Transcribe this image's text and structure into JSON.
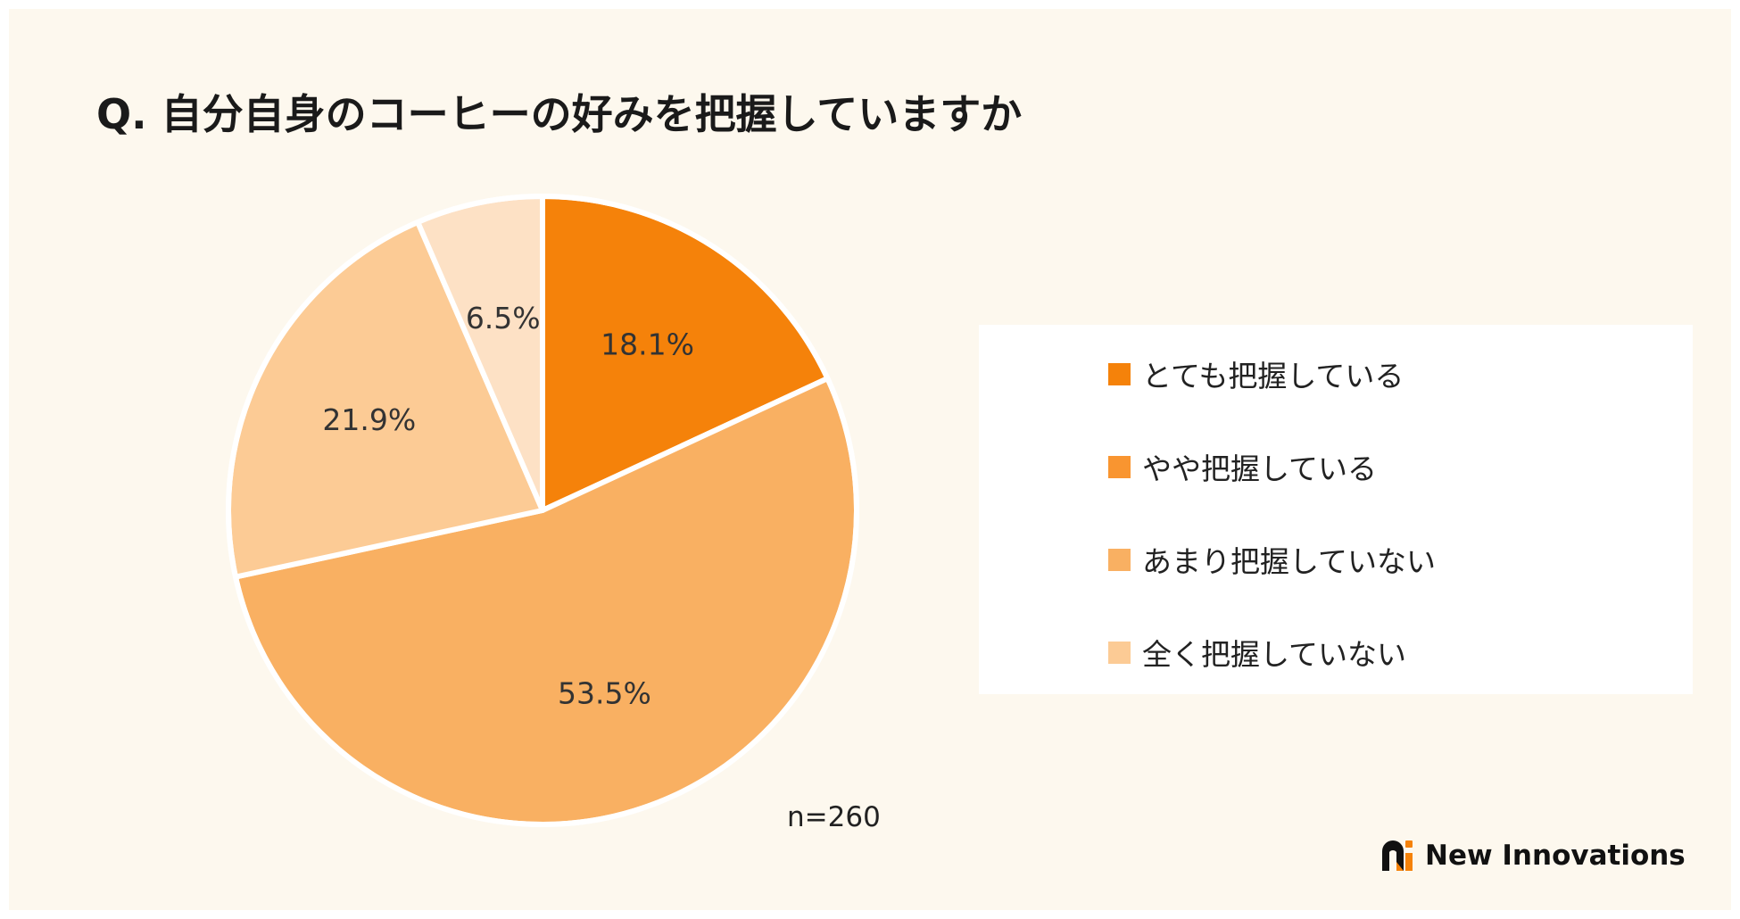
{
  "title": "Q. 自分自身のコーヒーの好みを把握していますか",
  "chart_data": {
    "type": "pie",
    "title": "Q. 自分自身のコーヒーの好みを把握していますか",
    "slices": [
      {
        "label": "とても把握している",
        "value": 18.1,
        "display": "18.1%",
        "color": "#f5820a"
      },
      {
        "label": "やや把握している",
        "value": 53.5,
        "display": "53.5%",
        "color": "#f9b062"
      },
      {
        "label": "あまり把握していない",
        "value": 21.9,
        "display": "21.9%",
        "color": "#fccb95"
      },
      {
        "label": "全く把握していない",
        "value": 6.5,
        "display": "6.5%",
        "color": "#fde1c5"
      }
    ],
    "legend_placement": "right",
    "start_angle": "12 o'clock",
    "direction": "clockwise"
  },
  "legend": {
    "items": [
      {
        "label": "とても把握している",
        "color": "#f5820a"
      },
      {
        "label": "やや把握している",
        "color": "#f99530"
      },
      {
        "label": "あまり把握していない",
        "color": "#f9b062"
      },
      {
        "label": "全く把握していない",
        "color": "#fccb95"
      }
    ]
  },
  "sample_size": "n=260",
  "brand": {
    "name": "New Innovations",
    "logo_icon": "new-innovations-logo-icon"
  }
}
